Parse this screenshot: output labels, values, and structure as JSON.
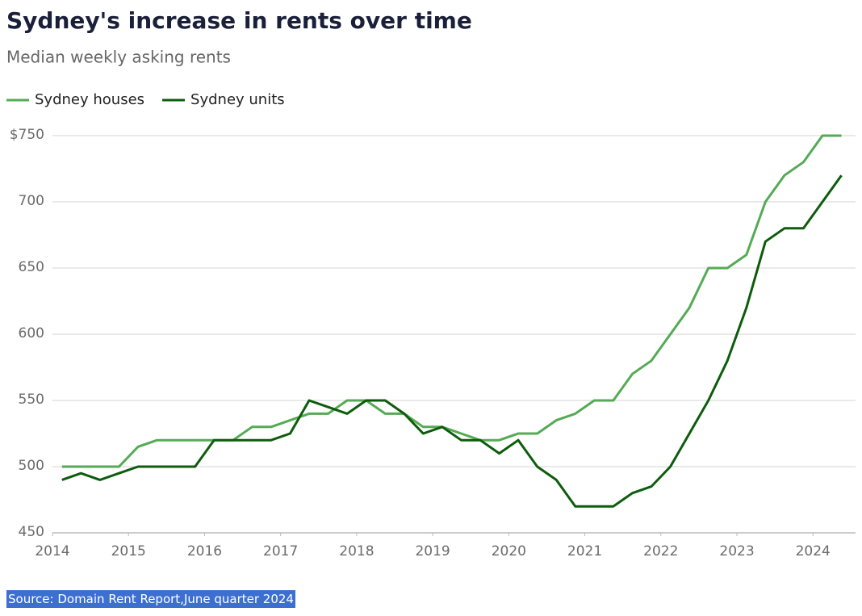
{
  "chart_data": {
    "type": "line",
    "title": "Sydney's increase in rents over time",
    "subtitle": "Median weekly asking rents",
    "source": "Source: Domain Rent Report,June quarter 2024",
    "x": [
      2014.125,
      2014.375,
      2014.625,
      2014.875,
      2015.125,
      2015.375,
      2015.625,
      2015.875,
      2016.125,
      2016.375,
      2016.625,
      2016.875,
      2017.125,
      2017.375,
      2017.625,
      2017.875,
      2018.125,
      2018.375,
      2018.625,
      2018.875,
      2019.125,
      2019.375,
      2019.625,
      2019.875,
      2020.125,
      2020.375,
      2020.625,
      2020.875,
      2021.125,
      2021.375,
      2021.625,
      2021.875,
      2022.125,
      2022.375,
      2022.625,
      2022.875,
      2023.125,
      2023.375,
      2023.625,
      2023.875,
      2024.125,
      2024.375
    ],
    "series": [
      {
        "name": "Sydney houses",
        "color": "#55aa55",
        "values": [
          500,
          500,
          500,
          500,
          515,
          520,
          520,
          520,
          520,
          520,
          530,
          530,
          535,
          540,
          540,
          550,
          550,
          540,
          540,
          530,
          530,
          525,
          520,
          520,
          525,
          525,
          535,
          540,
          550,
          550,
          570,
          580,
          600,
          620,
          650,
          650,
          660,
          700,
          720,
          730,
          750,
          750
        ]
      },
      {
        "name": "Sydney units",
        "color": "#0d5c0d",
        "values": [
          490,
          495,
          490,
          495,
          500,
          500,
          500,
          500,
          520,
          520,
          520,
          520,
          525,
          550,
          545,
          540,
          550,
          550,
          540,
          525,
          530,
          520,
          520,
          510,
          520,
          500,
          490,
          470,
          470,
          470,
          480,
          485,
          500,
          525,
          550,
          580,
          620,
          670,
          680,
          680,
          700,
          720
        ]
      }
    ],
    "xlim": [
      2014,
      2024.56
    ],
    "xticks": [
      2014,
      2015,
      2016,
      2017,
      2018,
      2019,
      2020,
      2021,
      2022,
      2023,
      2024
    ],
    "ylim": [
      450,
      750
    ],
    "yticks": [
      450,
      500,
      550,
      600,
      650,
      700,
      {
        "value": 750,
        "label": "$750"
      }
    ],
    "grid": true,
    "legend": "top-left"
  }
}
